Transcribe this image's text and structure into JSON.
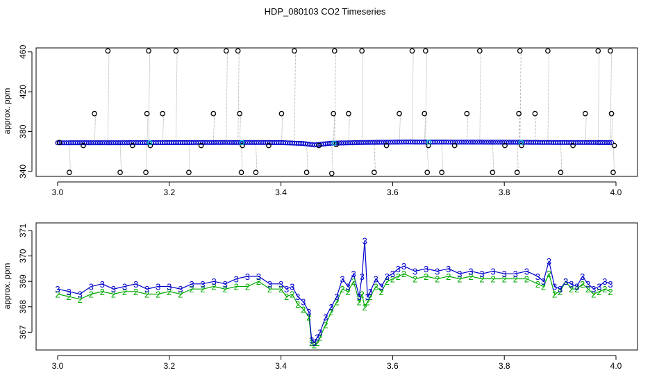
{
  "page_title": "HDP_080103  CO2 Timeseries",
  "colors": {
    "primary": "#0000cc",
    "secondary": "#00aa00",
    "outlier": "#000000",
    "cyan": "#00cccc",
    "line": "#999999"
  },
  "chart_data": [
    {
      "type": "scatter",
      "title": "",
      "xlabel": "",
      "ylabel": "approx. ppm",
      "xlim": [
        3.0,
        4.0
      ],
      "ylim": [
        335,
        464
      ],
      "x_ticks": [
        "3.0",
        "3.2",
        "3.4",
        "3.6",
        "3.8",
        "4.0"
      ],
      "y_ticks": [
        "340",
        "380",
        "420",
        "460"
      ],
      "series": [
        {
          "marker": "circle",
          "color": "#000000",
          "points": [
            {
              "x": 3.003,
              "y": 369
            },
            {
              "x": 3.021,
              "y": 339
            },
            {
              "x": 3.046,
              "y": 366
            },
            {
              "x": 3.066,
              "y": 398
            },
            {
              "x": 3.09,
              "y": 461
            },
            {
              "x": 3.112,
              "y": 339
            },
            {
              "x": 3.134,
              "y": 366
            },
            {
              "x": 3.158,
              "y": 339
            },
            {
              "x": 3.16,
              "y": 398
            },
            {
              "x": 3.163,
              "y": 461
            },
            {
              "x": 3.166,
              "y": 366
            },
            {
              "x": 3.188,
              "y": 398
            },
            {
              "x": 3.212,
              "y": 461
            },
            {
              "x": 3.235,
              "y": 339
            },
            {
              "x": 3.257,
              "y": 366
            },
            {
              "x": 3.279,
              "y": 398
            },
            {
              "x": 3.302,
              "y": 461
            },
            {
              "x": 3.323,
              "y": 461
            },
            {
              "x": 3.326,
              "y": 398
            },
            {
              "x": 3.329,
              "y": 339
            },
            {
              "x": 3.331,
              "y": 366
            },
            {
              "x": 3.355,
              "y": 339
            },
            {
              "x": 3.378,
              "y": 366
            },
            {
              "x": 3.401,
              "y": 398
            },
            {
              "x": 3.424,
              "y": 461
            },
            {
              "x": 3.446,
              "y": 339
            },
            {
              "x": 3.468,
              "y": 366
            },
            {
              "x": 3.491,
              "y": 338
            },
            {
              "x": 3.494,
              "y": 398
            },
            {
              "x": 3.496,
              "y": 461
            },
            {
              "x": 3.499,
              "y": 367
            },
            {
              "x": 3.521,
              "y": 398
            },
            {
              "x": 3.545,
              "y": 461
            },
            {
              "x": 3.567,
              "y": 339
            },
            {
              "x": 3.589,
              "y": 366
            },
            {
              "x": 3.612,
              "y": 398
            },
            {
              "x": 3.635,
              "y": 461
            },
            {
              "x": 3.657,
              "y": 398
            },
            {
              "x": 3.659,
              "y": 461
            },
            {
              "x": 3.662,
              "y": 339
            },
            {
              "x": 3.664,
              "y": 366
            },
            {
              "x": 3.688,
              "y": 339
            },
            {
              "x": 3.711,
              "y": 366
            },
            {
              "x": 3.733,
              "y": 398
            },
            {
              "x": 3.756,
              "y": 461
            },
            {
              "x": 3.779,
              "y": 339
            },
            {
              "x": 3.801,
              "y": 366
            },
            {
              "x": 3.823,
              "y": 339
            },
            {
              "x": 3.826,
              "y": 398
            },
            {
              "x": 3.828,
              "y": 461
            },
            {
              "x": 3.831,
              "y": 366
            },
            {
              "x": 3.855,
              "y": 398
            },
            {
              "x": 3.878,
              "y": 461
            },
            {
              "x": 3.901,
              "y": 339
            },
            {
              "x": 3.923,
              "y": 366
            },
            {
              "x": 3.945,
              "y": 398
            },
            {
              "x": 3.968,
              "y": 461
            },
            {
              "x": 3.99,
              "y": 461
            },
            {
              "x": 3.992,
              "y": 398
            },
            {
              "x": 3.995,
              "y": 339
            },
            {
              "x": 3.997,
              "y": 366
            }
          ]
        },
        {
          "marker": "circle",
          "color": "#0000cc",
          "baseline": [
            {
              "x": 3.0,
              "y": 368.7
            },
            {
              "x": 3.15,
              "y": 368.8
            },
            {
              "x": 3.3,
              "y": 369.0
            },
            {
              "x": 3.4,
              "y": 368.9
            },
            {
              "x": 3.44,
              "y": 368.0
            },
            {
              "x": 3.46,
              "y": 366.6
            },
            {
              "x": 3.49,
              "y": 368.3
            },
            {
              "x": 3.55,
              "y": 369.0
            },
            {
              "x": 3.62,
              "y": 369.5
            },
            {
              "x": 3.8,
              "y": 369.3
            },
            {
              "x": 3.88,
              "y": 369.0
            },
            {
              "x": 3.99,
              "y": 368.9
            }
          ]
        }
      ]
    },
    {
      "type": "line",
      "title": "",
      "xlabel": "",
      "ylabel": "approx. ppm",
      "xlim": [
        3.0,
        4.0
      ],
      "ylim": [
        366.3,
        371.3
      ],
      "x_ticks": [
        "3.0",
        "3.2",
        "3.4",
        "3.6",
        "3.8",
        "4.0"
      ],
      "y_ticks": [
        "367",
        "368",
        "369",
        "370",
        "371"
      ],
      "series": [
        {
          "marker": "3",
          "color": "#0000cc",
          "points": [
            {
              "x": 3.0,
              "y": 368.7
            },
            {
              "x": 3.02,
              "y": 368.6
            },
            {
              "x": 3.04,
              "y": 368.5
            },
            {
              "x": 3.06,
              "y": 368.8
            },
            {
              "x": 3.08,
              "y": 368.9
            },
            {
              "x": 3.1,
              "y": 368.7
            },
            {
              "x": 3.12,
              "y": 368.8
            },
            {
              "x": 3.14,
              "y": 368.9
            },
            {
              "x": 3.16,
              "y": 368.7
            },
            {
              "x": 3.18,
              "y": 368.8
            },
            {
              "x": 3.2,
              "y": 368.8
            },
            {
              "x": 3.22,
              "y": 368.7
            },
            {
              "x": 3.24,
              "y": 368.9
            },
            {
              "x": 3.26,
              "y": 368.9
            },
            {
              "x": 3.28,
              "y": 369.0
            },
            {
              "x": 3.3,
              "y": 368.9
            },
            {
              "x": 3.32,
              "y": 369.1
            },
            {
              "x": 3.34,
              "y": 369.2
            },
            {
              "x": 3.36,
              "y": 369.2
            },
            {
              "x": 3.38,
              "y": 368.9
            },
            {
              "x": 3.4,
              "y": 368.9
            },
            {
              "x": 3.41,
              "y": 368.7
            },
            {
              "x": 3.42,
              "y": 368.8
            },
            {
              "x": 3.43,
              "y": 368.4
            },
            {
              "x": 3.44,
              "y": 368.2
            },
            {
              "x": 3.45,
              "y": 367.8
            },
            {
              "x": 3.455,
              "y": 366.7
            },
            {
              "x": 3.46,
              "y": 366.6
            },
            {
              "x": 3.465,
              "y": 366.8
            },
            {
              "x": 3.47,
              "y": 367.0
            },
            {
              "x": 3.48,
              "y": 367.6
            },
            {
              "x": 3.49,
              "y": 368.0
            },
            {
              "x": 3.5,
              "y": 368.4
            },
            {
              "x": 3.51,
              "y": 369.1
            },
            {
              "x": 3.52,
              "y": 368.8
            },
            {
              "x": 3.53,
              "y": 369.3
            },
            {
              "x": 3.54,
              "y": 368.4
            },
            {
              "x": 3.545,
              "y": 369.2
            },
            {
              "x": 3.55,
              "y": 370.6
            },
            {
              "x": 3.555,
              "y": 368.4
            },
            {
              "x": 3.56,
              "y": 368.6
            },
            {
              "x": 3.57,
              "y": 369.1
            },
            {
              "x": 3.58,
              "y": 368.8
            },
            {
              "x": 3.59,
              "y": 369.2
            },
            {
              "x": 3.6,
              "y": 369.3
            },
            {
              "x": 3.61,
              "y": 369.5
            },
            {
              "x": 3.62,
              "y": 369.6
            },
            {
              "x": 3.64,
              "y": 369.4
            },
            {
              "x": 3.66,
              "y": 369.5
            },
            {
              "x": 3.68,
              "y": 369.4
            },
            {
              "x": 3.7,
              "y": 369.5
            },
            {
              "x": 3.72,
              "y": 369.3
            },
            {
              "x": 3.74,
              "y": 369.4
            },
            {
              "x": 3.76,
              "y": 369.3
            },
            {
              "x": 3.78,
              "y": 369.4
            },
            {
              "x": 3.8,
              "y": 369.3
            },
            {
              "x": 3.82,
              "y": 369.3
            },
            {
              "x": 3.84,
              "y": 369.4
            },
            {
              "x": 3.86,
              "y": 369.2
            },
            {
              "x": 3.87,
              "y": 369.0
            },
            {
              "x": 3.88,
              "y": 369.8
            },
            {
              "x": 3.89,
              "y": 368.8
            },
            {
              "x": 3.9,
              "y": 368.7
            },
            {
              "x": 3.91,
              "y": 369.0
            },
            {
              "x": 3.92,
              "y": 368.9
            },
            {
              "x": 3.93,
              "y": 368.8
            },
            {
              "x": 3.94,
              "y": 369.2
            },
            {
              "x": 3.95,
              "y": 368.9
            },
            {
              "x": 3.96,
              "y": 368.7
            },
            {
              "x": 3.97,
              "y": 368.8
            },
            {
              "x": 3.98,
              "y": 369.0
            },
            {
              "x": 3.99,
              "y": 368.9
            }
          ]
        },
        {
          "marker": "2",
          "color": "#00aa00",
          "points": [
            {
              "x": 3.0,
              "y": 368.5
            },
            {
              "x": 3.02,
              "y": 368.4
            },
            {
              "x": 3.04,
              "y": 368.3
            },
            {
              "x": 3.06,
              "y": 368.5
            },
            {
              "x": 3.08,
              "y": 368.6
            },
            {
              "x": 3.1,
              "y": 368.5
            },
            {
              "x": 3.12,
              "y": 368.6
            },
            {
              "x": 3.14,
              "y": 368.6
            },
            {
              "x": 3.16,
              "y": 368.5
            },
            {
              "x": 3.18,
              "y": 368.5
            },
            {
              "x": 3.2,
              "y": 368.6
            },
            {
              "x": 3.22,
              "y": 368.5
            },
            {
              "x": 3.24,
              "y": 368.7
            },
            {
              "x": 3.26,
              "y": 368.7
            },
            {
              "x": 3.28,
              "y": 368.8
            },
            {
              "x": 3.3,
              "y": 368.7
            },
            {
              "x": 3.32,
              "y": 368.8
            },
            {
              "x": 3.34,
              "y": 368.8
            },
            {
              "x": 3.36,
              "y": 369.0
            },
            {
              "x": 3.38,
              "y": 368.7
            },
            {
              "x": 3.4,
              "y": 368.7
            },
            {
              "x": 3.41,
              "y": 368.4
            },
            {
              "x": 3.42,
              "y": 368.5
            },
            {
              "x": 3.43,
              "y": 368.1
            },
            {
              "x": 3.44,
              "y": 367.9
            },
            {
              "x": 3.45,
              "y": 367.6
            },
            {
              "x": 3.455,
              "y": 366.6
            },
            {
              "x": 3.46,
              "y": 366.5
            },
            {
              "x": 3.465,
              "y": 366.6
            },
            {
              "x": 3.47,
              "y": 366.8
            },
            {
              "x": 3.48,
              "y": 367.3
            },
            {
              "x": 3.49,
              "y": 367.8
            },
            {
              "x": 3.5,
              "y": 368.2
            },
            {
              "x": 3.51,
              "y": 368.7
            },
            {
              "x": 3.52,
              "y": 368.6
            },
            {
              "x": 3.53,
              "y": 369.0
            },
            {
              "x": 3.54,
              "y": 368.2
            },
            {
              "x": 3.545,
              "y": 368.5
            },
            {
              "x": 3.55,
              "y": 368.0
            },
            {
              "x": 3.555,
              "y": 368.2
            },
            {
              "x": 3.56,
              "y": 368.4
            },
            {
              "x": 3.57,
              "y": 368.8
            },
            {
              "x": 3.58,
              "y": 368.6
            },
            {
              "x": 3.59,
              "y": 369.0
            },
            {
              "x": 3.6,
              "y": 369.1
            },
            {
              "x": 3.61,
              "y": 369.2
            },
            {
              "x": 3.62,
              "y": 369.3
            },
            {
              "x": 3.64,
              "y": 369.1
            },
            {
              "x": 3.66,
              "y": 369.2
            },
            {
              "x": 3.68,
              "y": 369.1
            },
            {
              "x": 3.7,
              "y": 369.2
            },
            {
              "x": 3.72,
              "y": 369.1
            },
            {
              "x": 3.74,
              "y": 369.2
            },
            {
              "x": 3.76,
              "y": 369.1
            },
            {
              "x": 3.78,
              "y": 369.1
            },
            {
              "x": 3.8,
              "y": 369.1
            },
            {
              "x": 3.82,
              "y": 369.1
            },
            {
              "x": 3.84,
              "y": 369.1
            },
            {
              "x": 3.86,
              "y": 368.9
            },
            {
              "x": 3.87,
              "y": 368.8
            },
            {
              "x": 3.88,
              "y": 369.3
            },
            {
              "x": 3.89,
              "y": 368.5
            },
            {
              "x": 3.9,
              "y": 368.6
            },
            {
              "x": 3.91,
              "y": 369.0
            },
            {
              "x": 3.92,
              "y": 368.7
            },
            {
              "x": 3.93,
              "y": 368.7
            },
            {
              "x": 3.94,
              "y": 368.9
            },
            {
              "x": 3.95,
              "y": 368.7
            },
            {
              "x": 3.96,
              "y": 368.5
            },
            {
              "x": 3.97,
              "y": 368.6
            },
            {
              "x": 3.98,
              "y": 368.7
            },
            {
              "x": 3.99,
              "y": 368.6
            }
          ]
        }
      ]
    }
  ]
}
